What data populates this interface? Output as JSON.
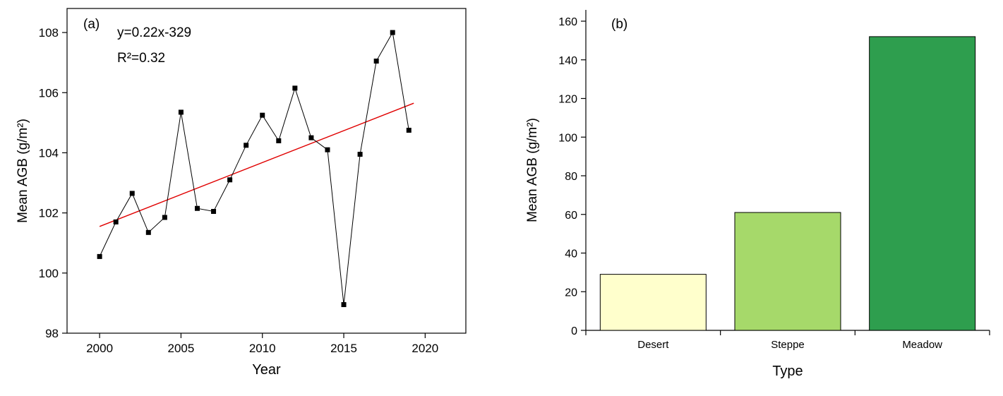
{
  "figure": {
    "background": "#ffffff"
  },
  "chart_data": [
    {
      "type": "line",
      "panel_label": "(a)",
      "xlabel": "Year",
      "ylabel": "Mean AGB (g/m²)",
      "annotation": [
        "y=0.22x-329",
        "R²=0.32"
      ],
      "x": [
        2000,
        2001,
        2002,
        2003,
        2004,
        2005,
        2006,
        2007,
        2008,
        2009,
        2010,
        2011,
        2012,
        2013,
        2014,
        2015,
        2016,
        2017,
        2018,
        2019
      ],
      "values": [
        100.55,
        101.7,
        102.65,
        101.35,
        101.85,
        105.35,
        102.15,
        102.05,
        103.1,
        104.25,
        105.25,
        104.4,
        106.15,
        104.5,
        104.1,
        98.95,
        103.95,
        107.05,
        108.0,
        104.75
      ],
      "xlim": [
        1998,
        2022.5
      ],
      "ylim": [
        98,
        108.8
      ],
      "x_ticks": [
        2000,
        2005,
        2010,
        2015,
        2020
      ],
      "y_ticks": [
        98,
        100,
        102,
        104,
        106,
        108
      ],
      "marker": "square",
      "marker_color": "#000000",
      "line_color": "#000000",
      "trend": {
        "x1": 2000,
        "y1": 101.55,
        "x2": 2019.3,
        "y2": 105.65,
        "color": "#e00000"
      },
      "grid": false,
      "legend": "none"
    },
    {
      "type": "bar",
      "panel_label": "(b)",
      "xlabel": "Type",
      "ylabel": "Mean AGB (g/m²)",
      "categories": [
        "Desert",
        "Steppe",
        "Meadow"
      ],
      "values": [
        29,
        61,
        152
      ],
      "bar_colors": [
        "#ffffcc",
        "#a6d96a",
        "#2e9e4e"
      ],
      "bar_border_color": "#000000",
      "ylim": [
        0,
        160
      ],
      "y_ticks": [
        0,
        20,
        40,
        60,
        80,
        100,
        120,
        140,
        160
      ],
      "grid": false,
      "legend": "none"
    }
  ]
}
